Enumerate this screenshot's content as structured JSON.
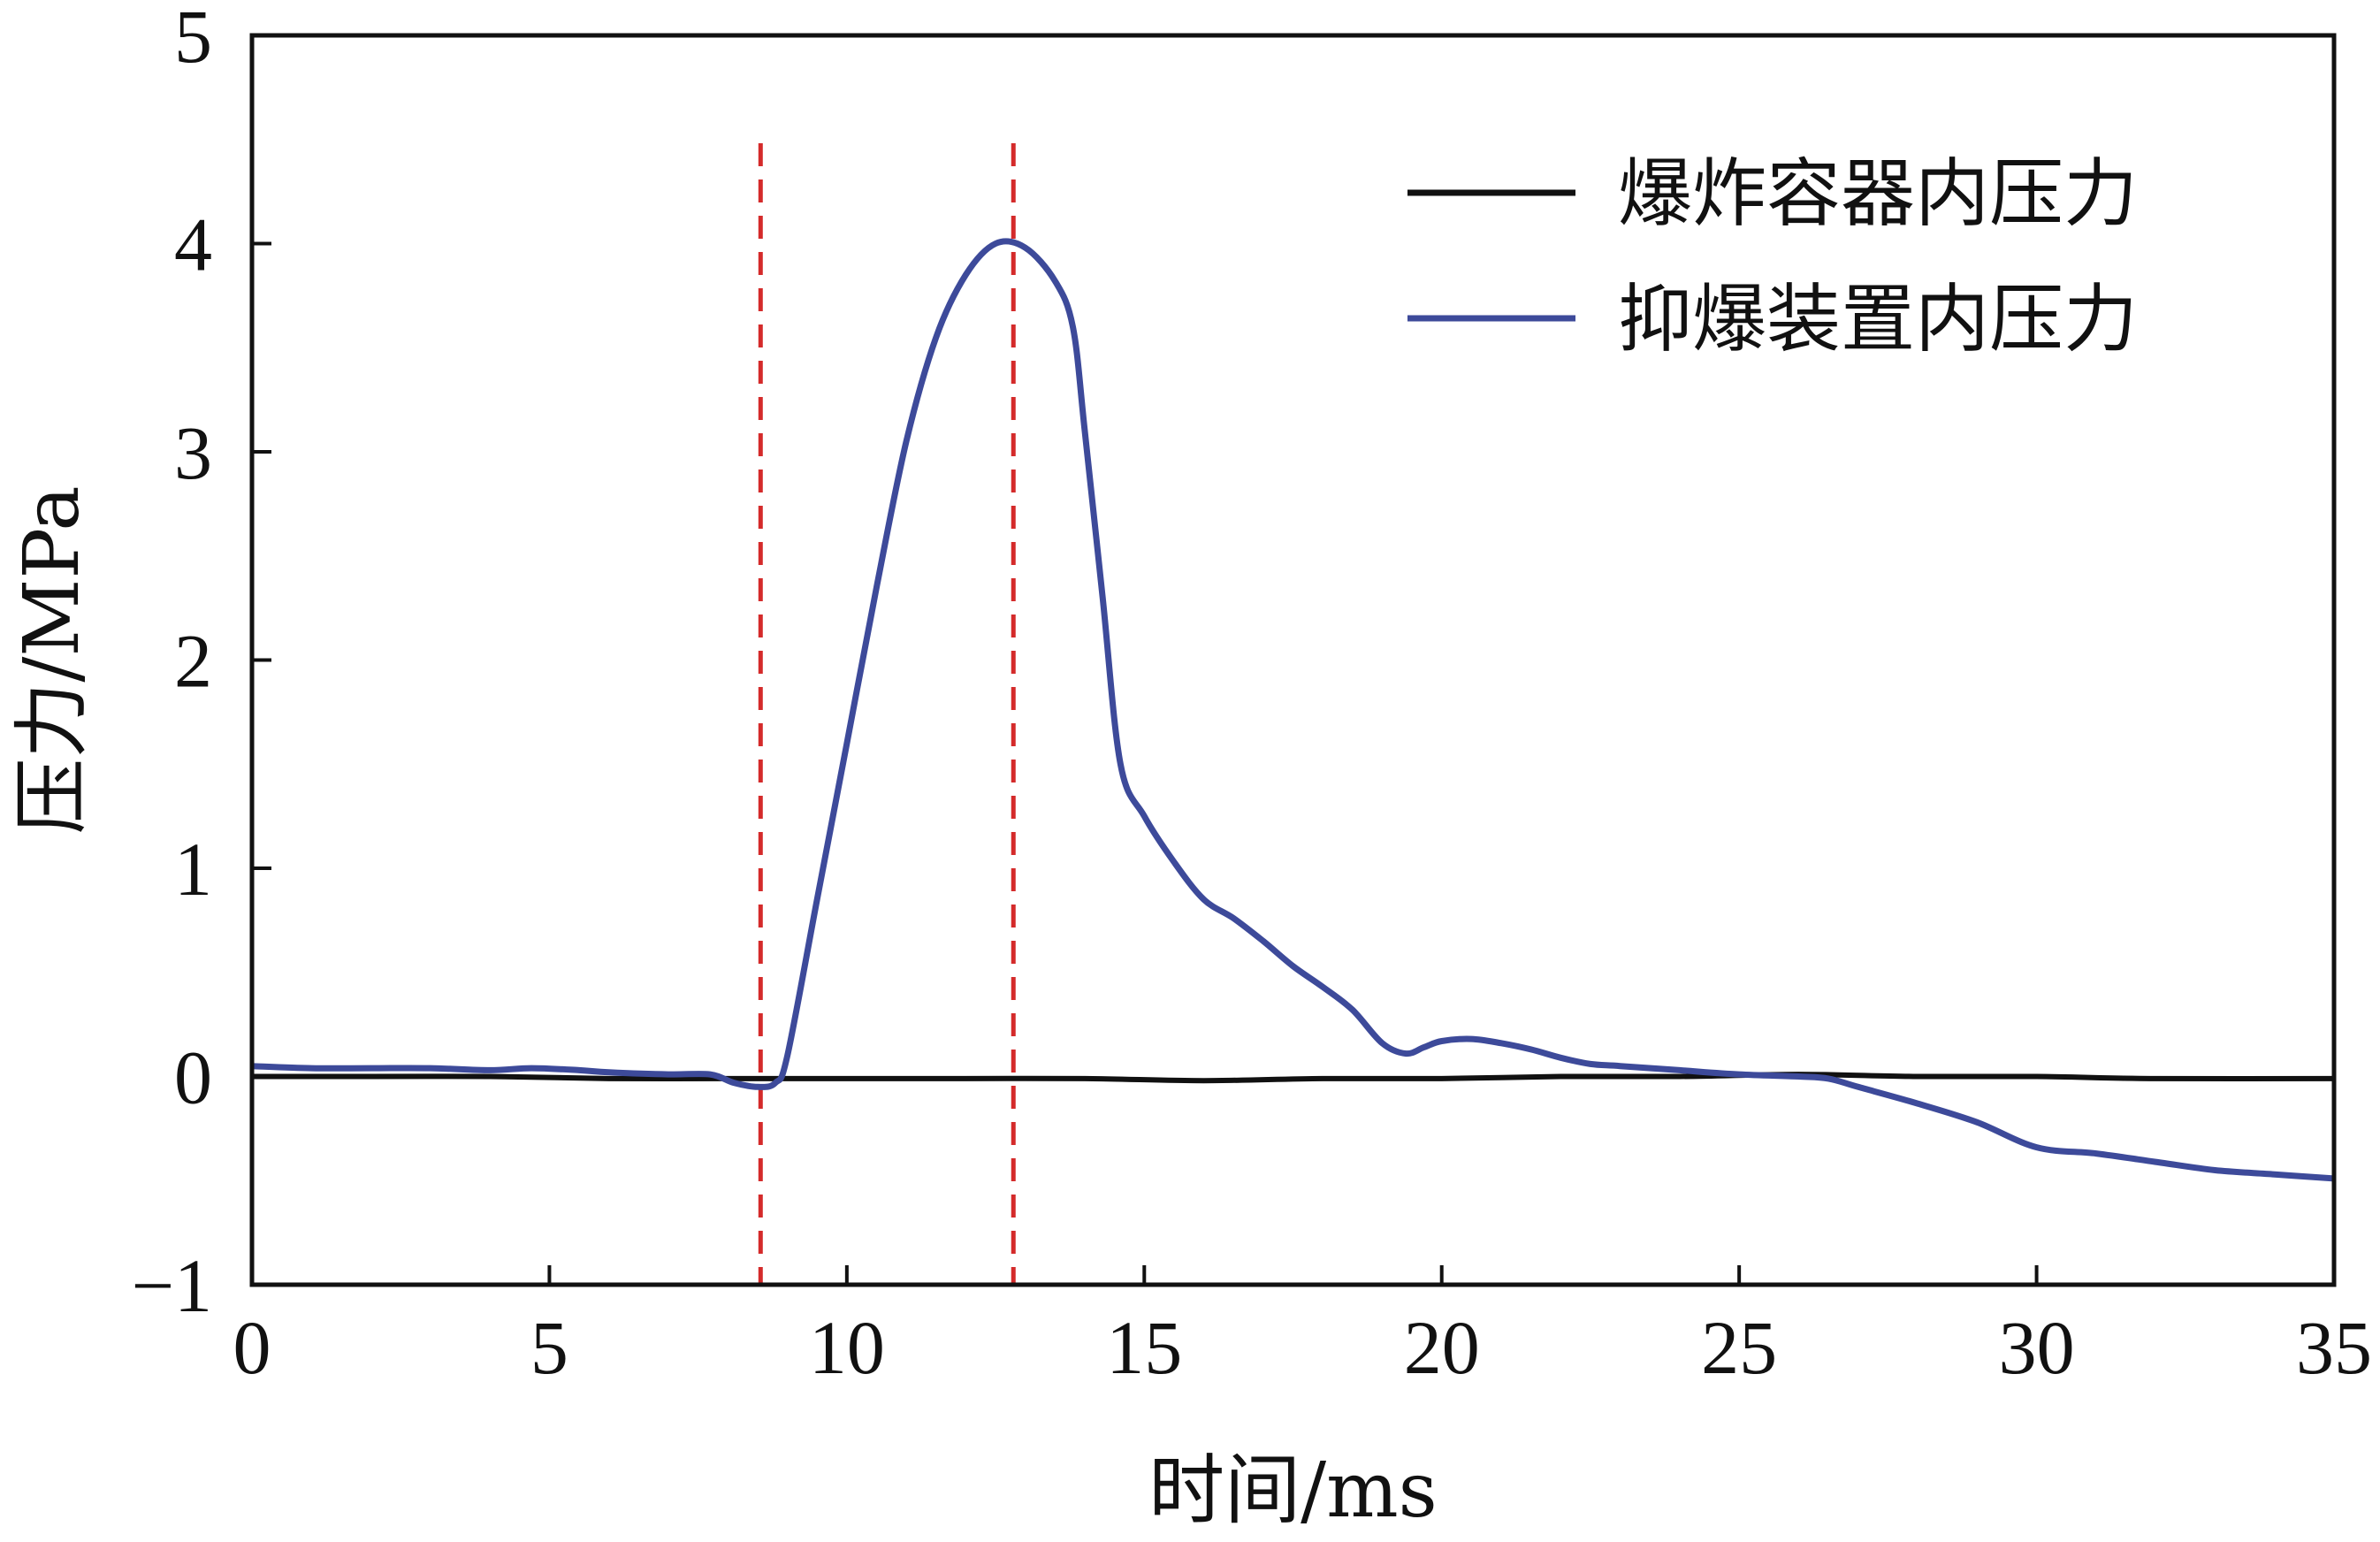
{
  "chart_data": {
    "type": "line",
    "xlabel": "时间/ms",
    "ylabel": "压力/MPa",
    "xlim": [
      0,
      35
    ],
    "ylim": [
      -1,
      5
    ],
    "xticks": [
      0,
      5,
      10,
      15,
      20,
      25,
      30,
      35
    ],
    "yticks": [
      -1,
      0,
      1,
      2,
      3,
      4,
      5
    ],
    "xtick_labels": [
      "0",
      "5",
      "10",
      "15",
      "20",
      "25",
      "30",
      "35"
    ],
    "ytick_labels": [
      "−1",
      "0",
      "1",
      "2",
      "3",
      "4",
      "5"
    ],
    "grid": false,
    "legend_position": "top-right",
    "series": [
      {
        "name": "爆炸容器内压力",
        "color": "#111111",
        "x": [
          0,
          2,
          4,
          6,
          8,
          10,
          12,
          14,
          16,
          18,
          20,
          22,
          24,
          26,
          28,
          30,
          32,
          35
        ],
        "y": [
          0.0,
          0.0,
          0.0,
          -0.01,
          -0.01,
          -0.01,
          -0.01,
          -0.01,
          -0.02,
          -0.01,
          -0.01,
          0.0,
          0.0,
          0.01,
          0.0,
          0.0,
          -0.01,
          -0.01
        ]
      },
      {
        "name": "抑爆装置内压力",
        "color": "#3d4a9a",
        "x": [
          0,
          1,
          2,
          3,
          4,
          4.7,
          5.5,
          6,
          7,
          7.7,
          8.1,
          8.5,
          8.8,
          9.0,
          9.5,
          10,
          10.5,
          11,
          11.5,
          12,
          12.5,
          13,
          13.5,
          13.8,
          14,
          14.3,
          14.6,
          15,
          15.5,
          16,
          16.5,
          17,
          17.5,
          18,
          18.5,
          19,
          19.4,
          19.7,
          20,
          20.5,
          21,
          21.5,
          22,
          22.5,
          23,
          24,
          25,
          26,
          26.5,
          27,
          28,
          29,
          30,
          31,
          32,
          33,
          34,
          35
        ],
        "y": [
          0.05,
          0.04,
          0.04,
          0.04,
          0.03,
          0.04,
          0.03,
          0.02,
          0.01,
          0.01,
          -0.03,
          -0.05,
          -0.03,
          0.1,
          0.85,
          1.6,
          2.35,
          3.05,
          3.55,
          3.85,
          4.0,
          3.98,
          3.82,
          3.6,
          3.1,
          2.3,
          1.5,
          1.25,
          1.03,
          0.85,
          0.76,
          0.65,
          0.53,
          0.43,
          0.32,
          0.16,
          0.11,
          0.14,
          0.17,
          0.18,
          0.16,
          0.13,
          0.09,
          0.06,
          0.05,
          0.03,
          0.01,
          0.0,
          -0.01,
          -0.05,
          -0.13,
          -0.22,
          -0.34,
          -0.37,
          -0.41,
          -0.45,
          -0.47,
          -0.49
        ]
      }
    ],
    "annotations": [
      {
        "type": "vline",
        "x": 8.55,
        "color": "#d42a2a",
        "style": "dashed"
      },
      {
        "type": "vline",
        "x": 12.8,
        "color": "#d42a2a",
        "style": "dashed"
      }
    ]
  }
}
